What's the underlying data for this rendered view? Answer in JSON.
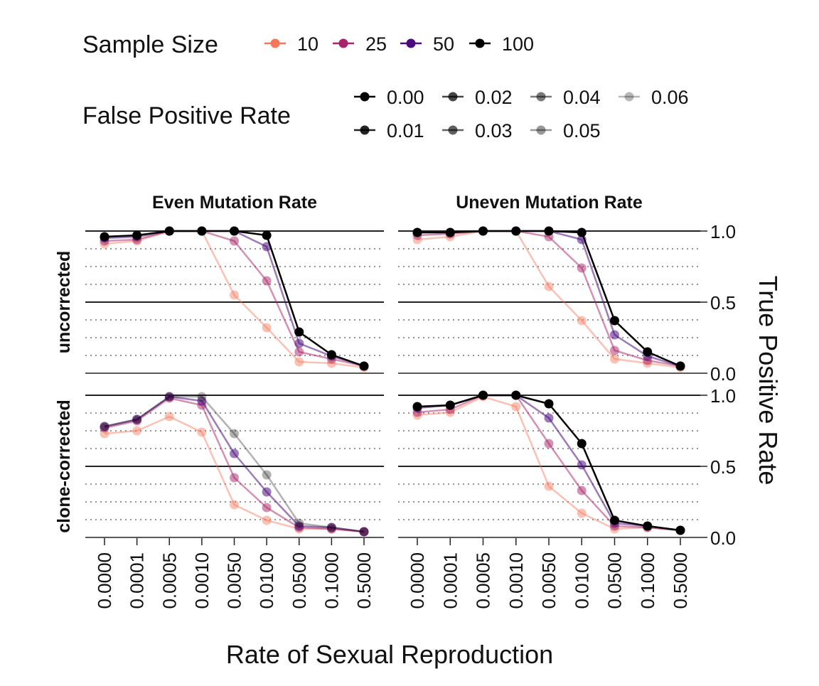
{
  "chart_data": {
    "type": "line",
    "xlabel": "Rate of Sexual Reproduction",
    "ylabel": "True Positive Rate",
    "x": [
      "0.0000",
      "0.0001",
      "0.0005",
      "0.0010",
      "0.0050",
      "0.0100",
      "0.0500",
      "0.1000",
      "0.5000"
    ],
    "ylim": [
      0,
      1
    ],
    "yticks": [
      "0.0",
      "0.5",
      "1.0"
    ],
    "y_major_grid": [
      0,
      0.5,
      1.0
    ],
    "y_minor_grid": [
      0.125,
      0.25,
      0.375,
      0.625,
      0.75,
      0.875
    ],
    "columns": [
      "Even Mutation Rate",
      "Uneven Mutation Rate"
    ],
    "rows": [
      "uncorrected",
      "clone-corrected"
    ],
    "legend": {
      "placement": "top",
      "sample_size_title": "Sample Size",
      "sample_sizes": [
        {
          "label": "10",
          "color": "#f4775a"
        },
        {
          "label": "25",
          "color": "#a82368"
        },
        {
          "label": "50",
          "color": "#4d0c7e"
        },
        {
          "label": "100",
          "color": "#000000"
        }
      ],
      "fpr_title": "False Positive Rate",
      "fpr_rows": [
        [
          {
            "label": "0.00",
            "alpha": 1.0
          },
          {
            "label": "0.02",
            "alpha": 0.72
          },
          {
            "label": "0.04",
            "alpha": 0.52
          },
          {
            "label": "0.06",
            "alpha": 0.28
          }
        ],
        [
          {
            "label": "0.01",
            "alpha": 0.86
          },
          {
            "label": "0.03",
            "alpha": 0.62
          },
          {
            "label": "0.05",
            "alpha": 0.4
          }
        ]
      ]
    },
    "panels": [
      {
        "column": "Even Mutation Rate",
        "row": "uncorrected",
        "series": [
          {
            "sample_size": "10",
            "alpha": 0.45,
            "values": [
              0.91,
              0.93,
              1.0,
              1.0,
              0.55,
              0.32,
              0.08,
              0.07,
              0.04
            ]
          },
          {
            "sample_size": "25",
            "alpha": 0.5,
            "values": [
              0.93,
              0.94,
              1.0,
              1.0,
              0.93,
              0.65,
              0.15,
              0.1,
              0.05
            ]
          },
          {
            "sample_size": "50",
            "alpha": 0.55,
            "values": [
              0.95,
              0.96,
              1.0,
              1.0,
              1.0,
              0.89,
              0.21,
              0.12,
              0.05
            ]
          },
          {
            "sample_size": "100",
            "alpha": 1.0,
            "values": [
              0.96,
              0.97,
              1.0,
              1.0,
              1.0,
              0.97,
              0.29,
              0.13,
              0.05
            ]
          }
        ]
      },
      {
        "column": "Uneven Mutation Rate",
        "row": "uncorrected",
        "series": [
          {
            "sample_size": "10",
            "alpha": 0.45,
            "values": [
              0.94,
              0.96,
              1.0,
              1.0,
              0.61,
              0.37,
              0.1,
              0.07,
              0.04
            ]
          },
          {
            "sample_size": "25",
            "alpha": 0.5,
            "values": [
              0.97,
              0.98,
              1.0,
              1.0,
              0.96,
              0.74,
              0.16,
              0.09,
              0.05
            ]
          },
          {
            "sample_size": "50",
            "alpha": 0.55,
            "values": [
              0.99,
              0.99,
              1.0,
              1.0,
              1.0,
              0.94,
              0.27,
              0.12,
              0.05
            ]
          },
          {
            "sample_size": "100",
            "alpha": 1.0,
            "values": [
              0.99,
              0.99,
              1.0,
              1.0,
              1.0,
              0.99,
              0.37,
              0.15,
              0.05
            ]
          }
        ]
      },
      {
        "column": "Even Mutation Rate",
        "row": "clone-corrected",
        "series": [
          {
            "sample_size": "10",
            "alpha": 0.45,
            "values": [
              0.73,
              0.75,
              0.85,
              0.74,
              0.23,
              0.12,
              0.06,
              0.06,
              0.04
            ]
          },
          {
            "sample_size": "25",
            "alpha": 0.5,
            "values": [
              0.77,
              0.82,
              0.98,
              0.93,
              0.42,
              0.21,
              0.07,
              0.06,
              0.04
            ]
          },
          {
            "sample_size": "50",
            "alpha": 0.55,
            "values": [
              0.78,
              0.83,
              0.99,
              0.96,
              0.59,
              0.32,
              0.08,
              0.07,
              0.04
            ]
          },
          {
            "sample_size": "100",
            "alpha": 0.3,
            "values": [
              0.78,
              0.83,
              0.99,
              0.99,
              0.73,
              0.44,
              0.1,
              0.07,
              0.04
            ]
          }
        ]
      },
      {
        "column": "Uneven Mutation Rate",
        "row": "clone-corrected",
        "series": [
          {
            "sample_size": "10",
            "alpha": 0.45,
            "values": [
              0.86,
              0.88,
              0.99,
              0.92,
              0.36,
              0.17,
              0.06,
              0.07,
              0.05
            ]
          },
          {
            "sample_size": "25",
            "alpha": 0.5,
            "values": [
              0.88,
              0.9,
              1.0,
              1.0,
              0.66,
              0.33,
              0.08,
              0.07,
              0.05
            ]
          },
          {
            "sample_size": "50",
            "alpha": 0.55,
            "values": [
              0.91,
              0.93,
              1.0,
              1.0,
              0.84,
              0.51,
              0.1,
              0.08,
              0.05
            ]
          },
          {
            "sample_size": "100",
            "alpha": 1.0,
            "values": [
              0.92,
              0.93,
              1.0,
              1.0,
              0.94,
              0.66,
              0.12,
              0.08,
              0.05
            ]
          }
        ]
      }
    ]
  }
}
